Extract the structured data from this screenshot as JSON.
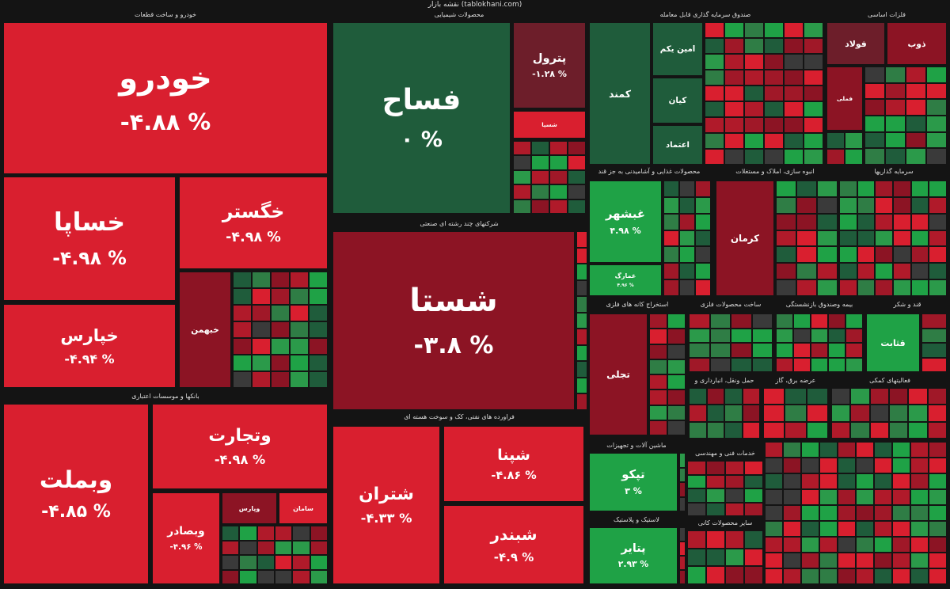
{
  "header": "نقشه بازار (tablokhani.com)",
  "sectors": [
    {
      "title": "خودرو و ساخت قطعات",
      "tiles": [
        {
          "name": "خودرو",
          "change": "-۴.۸۸ %"
        },
        {
          "name": "خساپا",
          "change": "-۴.۹۸ %"
        },
        {
          "name": "خگستر",
          "change": "-۴.۹۸ %"
        },
        {
          "name": "خپارس",
          "change": "-۴.۹۴ %"
        },
        {
          "name": "خبهمن"
        }
      ]
    },
    {
      "title": "محصولات شیمیایی",
      "tiles": [
        {
          "name": "فساح",
          "change": "۰ %"
        },
        {
          "name": "پترول",
          "change": "-۱.۲۸ %"
        },
        {
          "name": "شسپا"
        }
      ]
    },
    {
      "title": "شرکتهای چند رشته ای صنعتی",
      "tiles": [
        {
          "name": "شستا",
          "change": "-۳.۸ %"
        }
      ]
    },
    {
      "title": "بانکها و موسسات اعتباری",
      "tiles": [
        {
          "name": "وبملت",
          "change": "-۴.۸۵ %"
        },
        {
          "name": "وتجارت",
          "change": "-۴.۹۸ %"
        },
        {
          "name": "وبصادر",
          "change": "-۴.۹۶ %"
        },
        {
          "name": "وپارس"
        },
        {
          "name": "سامان"
        }
      ]
    },
    {
      "title": "فراورده های نفتی، کک و سوخت هسته ای",
      "tiles": [
        {
          "name": "شتران",
          "change": "-۴.۳۳ %"
        },
        {
          "name": "شپنا",
          "change": "-۴.۸۶ %"
        },
        {
          "name": "شبندر",
          "change": "-۴.۹ %"
        }
      ]
    },
    {
      "title": "صندوق سرمایه گذاری قابل معامله",
      "tiles": [
        {
          "name": "کمند"
        },
        {
          "name": "امین یکم"
        },
        {
          "name": "کیان"
        },
        {
          "name": "اعتماد"
        }
      ]
    },
    {
      "title": "فلزات اساسی",
      "tiles": [
        {
          "name": "فولاد"
        },
        {
          "name": "ذوب"
        },
        {
          "name": "فملی"
        }
      ]
    },
    {
      "title": "محصولات غذایی و آشامیدنی به جز قند",
      "tiles": [
        {
          "name": "غبشهر",
          "change": "۴.۹۸ %"
        },
        {
          "name": "غمارگ",
          "change": "۴.۹۶ %"
        }
      ]
    },
    {
      "title": "انبوه سازی، املاک و مستغلات",
      "tiles": [
        {
          "name": "کرمان"
        }
      ]
    },
    {
      "title": "سرمایه گذاریها",
      "tiles": []
    },
    {
      "title": "استخراج کانه های فلزی",
      "tiles": [
        {
          "name": "تجلی"
        }
      ]
    },
    {
      "title": "ساخت محصولات فلزی",
      "tiles": []
    },
    {
      "title": "بیمه وصندوق بازنشستگی",
      "tiles": []
    },
    {
      "title": "قند و شکر",
      "tiles": [
        {
          "name": "قثابت"
        }
      ]
    },
    {
      "title": "حمل ونقل، انبارداری و",
      "tiles": []
    },
    {
      "title": "عرضه برق، گاز",
      "tiles": []
    },
    {
      "title": "فعالیتهای کمکی",
      "tiles": []
    },
    {
      "title": "ماشین آلات و تجهیزات",
      "tiles": [
        {
          "name": "تپکو",
          "change": "۳ %"
        }
      ]
    },
    {
      "title": "لاستیک و پلاستیک",
      "tiles": [
        {
          "name": "پتایر",
          "change": "۲.۹۳ %"
        }
      ]
    },
    {
      "title": "سایر محصولات کانی",
      "tiles": []
    },
    {
      "title": "خدمات فنی و مهندسی",
      "tiles": []
    }
  ]
}
